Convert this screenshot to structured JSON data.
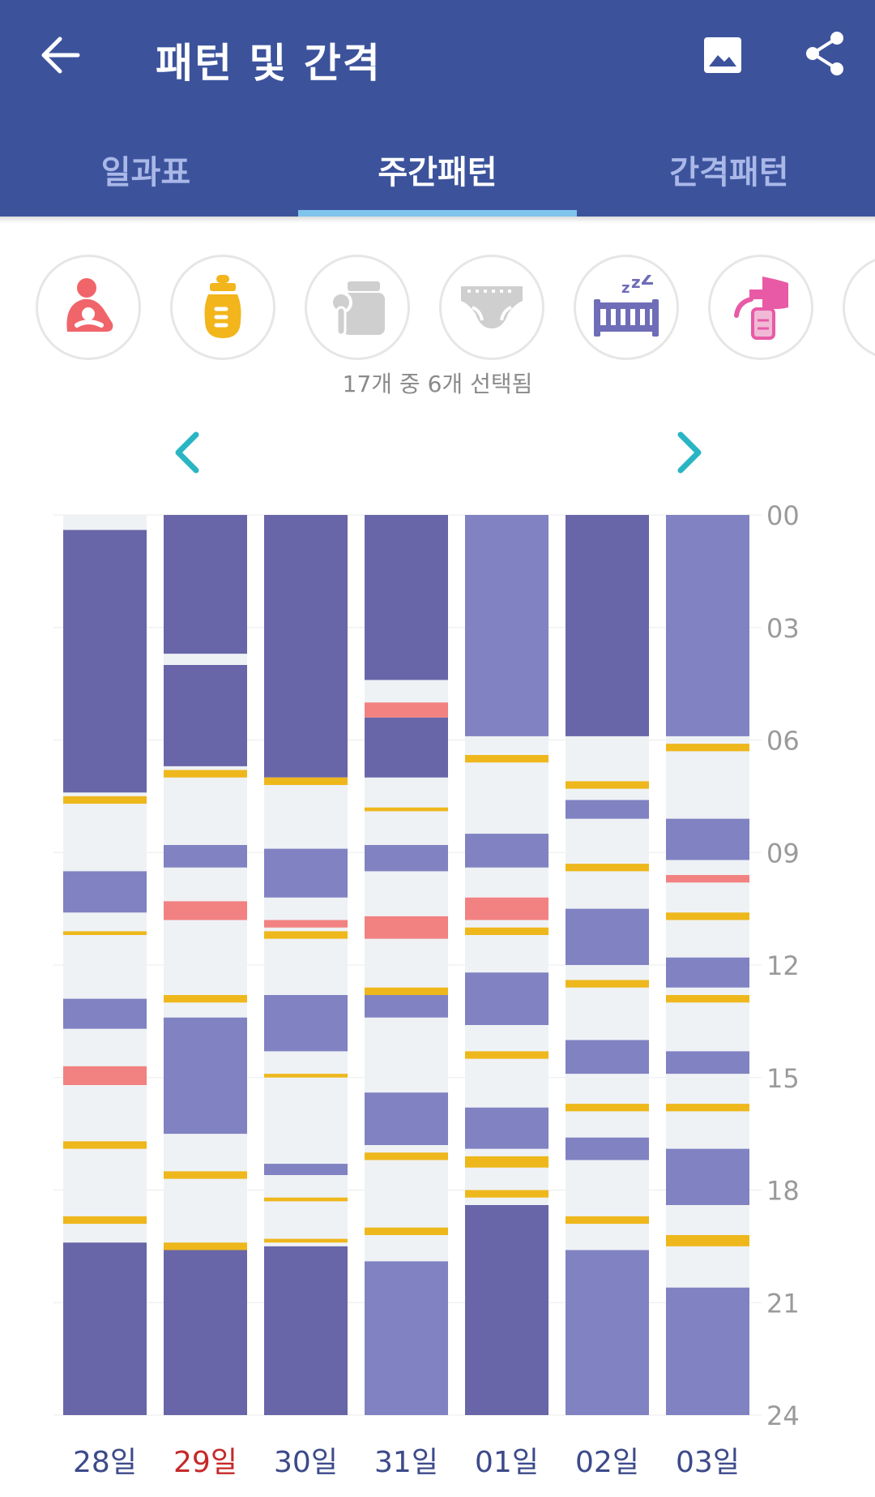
{
  "header": {
    "title": "패턴 및 간격",
    "back_icon": "arrow-left-icon",
    "image_icon": "image-icon",
    "share_icon": "share-icon"
  },
  "tabs": [
    {
      "label": "일과표",
      "active": false
    },
    {
      "label": "주간패턴",
      "active": true
    },
    {
      "label": "간격패턴",
      "active": false
    }
  ],
  "filters": {
    "items": [
      {
        "icon": "breastfeeding-icon",
        "color": "#f0656a",
        "selected": true
      },
      {
        "icon": "bottle-icon",
        "color": "#f2b51c",
        "selected": true
      },
      {
        "icon": "baby-food-icon",
        "color": "#cfcfcf",
        "selected": false
      },
      {
        "icon": "diaper-icon",
        "color": "#cfcfcf",
        "selected": false
      },
      {
        "icon": "sleep-crib-icon",
        "color": "#6f6cb8",
        "selected": true
      },
      {
        "icon": "breast-pump-icon",
        "color": "#e85aa6",
        "selected": true
      },
      {
        "icon": "partial-icon",
        "color": "#cfe8a0",
        "selected": false
      }
    ],
    "selection_text": "17개 중 6개 선택됨"
  },
  "nav": {
    "prev_icon": "chevron-left-icon",
    "next_icon": "chevron-right-icon"
  },
  "colors": {
    "night_sleep": "#6866a8",
    "nap": "#8082c2",
    "bottle": "#eeb71c",
    "breastfeeding": "#f28181",
    "empty": "#eff2f5",
    "accent": "#2ab5c4",
    "header_bg": "#3c539c"
  },
  "chart_data": {
    "type": "timeline",
    "y_unit": "hour",
    "ylim": [
      0,
      24
    ],
    "y_ticks": [
      "00",
      "03",
      "06",
      "09",
      "12",
      "15",
      "18",
      "21",
      "24"
    ],
    "categories": [
      "28일",
      "29일",
      "30일",
      "31일",
      "01일",
      "02일",
      "03일"
    ],
    "highlight_category_index": 1,
    "days": [
      {
        "label": "28일",
        "events": [
          {
            "type": "night_sleep",
            "start": 0.4,
            "end": 7.4
          },
          {
            "type": "bottle",
            "start": 7.5,
            "end": 7.7
          },
          {
            "type": "nap",
            "start": 9.5,
            "end": 10.6
          },
          {
            "type": "bottle",
            "start": 11.1,
            "end": 11.2
          },
          {
            "type": "nap",
            "start": 12.9,
            "end": 13.7
          },
          {
            "type": "breastfeeding",
            "start": 14.7,
            "end": 15.2
          },
          {
            "type": "bottle",
            "start": 16.7,
            "end": 16.9
          },
          {
            "type": "bottle",
            "start": 18.7,
            "end": 18.9
          },
          {
            "type": "night_sleep",
            "start": 19.4,
            "end": 24
          }
        ]
      },
      {
        "label": "29일",
        "events": [
          {
            "type": "night_sleep",
            "start": 0,
            "end": 3.7
          },
          {
            "type": "night_sleep",
            "start": 4.0,
            "end": 6.7
          },
          {
            "type": "bottle",
            "start": 6.8,
            "end": 7.0
          },
          {
            "type": "nap",
            "start": 8.8,
            "end": 9.4
          },
          {
            "type": "breastfeeding",
            "start": 10.3,
            "end": 10.8
          },
          {
            "type": "bottle",
            "start": 12.8,
            "end": 13.0
          },
          {
            "type": "nap",
            "start": 13.4,
            "end": 16.5
          },
          {
            "type": "bottle",
            "start": 17.5,
            "end": 17.7
          },
          {
            "type": "bottle",
            "start": 19.4,
            "end": 19.6
          },
          {
            "type": "night_sleep",
            "start": 19.6,
            "end": 24
          }
        ]
      },
      {
        "label": "30일",
        "events": [
          {
            "type": "night_sleep",
            "start": 0,
            "end": 7.0
          },
          {
            "type": "bottle",
            "start": 7.0,
            "end": 7.2
          },
          {
            "type": "nap",
            "start": 8.9,
            "end": 10.2
          },
          {
            "type": "breastfeeding",
            "start": 10.8,
            "end": 11.0
          },
          {
            "type": "bottle",
            "start": 11.1,
            "end": 11.3
          },
          {
            "type": "nap",
            "start": 12.8,
            "end": 14.3
          },
          {
            "type": "bottle",
            "start": 14.9,
            "end": 15.0
          },
          {
            "type": "nap",
            "start": 17.3,
            "end": 17.6
          },
          {
            "type": "bottle",
            "start": 18.2,
            "end": 18.3
          },
          {
            "type": "bottle",
            "start": 19.3,
            "end": 19.4
          },
          {
            "type": "night_sleep",
            "start": 19.5,
            "end": 24
          }
        ]
      },
      {
        "label": "31일",
        "events": [
          {
            "type": "night_sleep",
            "start": 0,
            "end": 4.4
          },
          {
            "type": "breastfeeding",
            "start": 5.0,
            "end": 5.4
          },
          {
            "type": "night_sleep",
            "start": 5.4,
            "end": 7.0
          },
          {
            "type": "bottle",
            "start": 7.8,
            "end": 7.9
          },
          {
            "type": "nap",
            "start": 8.8,
            "end": 9.5
          },
          {
            "type": "breastfeeding",
            "start": 10.7,
            "end": 11.3
          },
          {
            "type": "bottle",
            "start": 12.6,
            "end": 12.8
          },
          {
            "type": "nap",
            "start": 12.8,
            "end": 13.4
          },
          {
            "type": "nap",
            "start": 15.4,
            "end": 16.8
          },
          {
            "type": "bottle",
            "start": 17.0,
            "end": 17.2
          },
          {
            "type": "bottle",
            "start": 19.0,
            "end": 19.2
          },
          {
            "type": "nap",
            "start": 19.9,
            "end": 24
          }
        ]
      },
      {
        "label": "01일",
        "events": [
          {
            "type": "nap",
            "start": 0,
            "end": 5.9
          },
          {
            "type": "bottle",
            "start": 6.4,
            "end": 6.6
          },
          {
            "type": "nap",
            "start": 8.5,
            "end": 9.4
          },
          {
            "type": "breastfeeding",
            "start": 10.2,
            "end": 10.8
          },
          {
            "type": "bottle",
            "start": 11.0,
            "end": 11.2
          },
          {
            "type": "nap",
            "start": 12.2,
            "end": 13.6
          },
          {
            "type": "bottle",
            "start": 14.3,
            "end": 14.5
          },
          {
            "type": "nap",
            "start": 15.8,
            "end": 16.9
          },
          {
            "type": "bottle",
            "start": 17.1,
            "end": 17.4
          },
          {
            "type": "bottle",
            "start": 18.0,
            "end": 18.2
          },
          {
            "type": "night_sleep",
            "start": 18.4,
            "end": 24
          }
        ]
      },
      {
        "label": "02일",
        "events": [
          {
            "type": "night_sleep",
            "start": 0,
            "end": 5.9
          },
          {
            "type": "bottle",
            "start": 7.1,
            "end": 7.3
          },
          {
            "type": "nap",
            "start": 7.6,
            "end": 8.1
          },
          {
            "type": "bottle",
            "start": 9.3,
            "end": 9.5
          },
          {
            "type": "nap",
            "start": 10.5,
            "end": 12.0
          },
          {
            "type": "bottle",
            "start": 12.4,
            "end": 12.6
          },
          {
            "type": "nap",
            "start": 14.0,
            "end": 14.9
          },
          {
            "type": "bottle",
            "start": 15.7,
            "end": 15.9
          },
          {
            "type": "nap",
            "start": 16.6,
            "end": 17.2
          },
          {
            "type": "bottle",
            "start": 18.7,
            "end": 18.9
          },
          {
            "type": "nap",
            "start": 19.6,
            "end": 24
          }
        ]
      },
      {
        "label": "03일",
        "events": [
          {
            "type": "nap",
            "start": 0,
            "end": 5.9
          },
          {
            "type": "bottle",
            "start": 6.1,
            "end": 6.3
          },
          {
            "type": "nap",
            "start": 8.1,
            "end": 9.2
          },
          {
            "type": "breastfeeding",
            "start": 9.6,
            "end": 9.8
          },
          {
            "type": "bottle",
            "start": 10.6,
            "end": 10.8
          },
          {
            "type": "nap",
            "start": 11.8,
            "end": 12.6
          },
          {
            "type": "bottle",
            "start": 12.8,
            "end": 13.0
          },
          {
            "type": "nap",
            "start": 14.3,
            "end": 14.9
          },
          {
            "type": "bottle",
            "start": 15.7,
            "end": 15.9
          },
          {
            "type": "nap",
            "start": 16.9,
            "end": 18.4
          },
          {
            "type": "bottle",
            "start": 19.2,
            "end": 19.5
          },
          {
            "type": "nap",
            "start": 20.6,
            "end": 24
          }
        ]
      }
    ]
  }
}
